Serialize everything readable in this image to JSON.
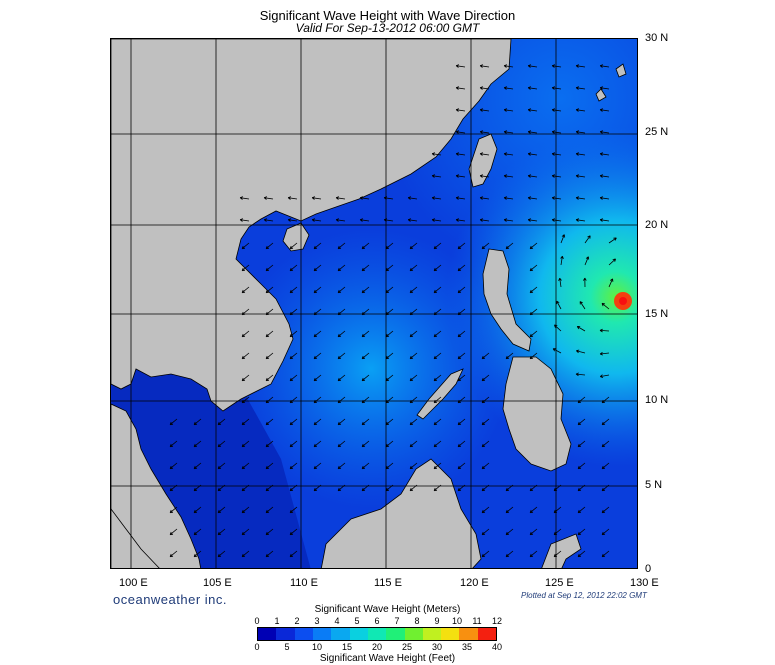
{
  "title": "Significant Wave Height with Wave Direction",
  "subtitle": "Valid For Sep-13-2012 06:00 GMT",
  "lon_labels": [
    "100 E",
    "105 E",
    "110 E",
    "115 E",
    "120 E",
    "125 E",
    "130 E"
  ],
  "lat_labels": [
    "30 N",
    "25 N",
    "20 N",
    "15 N",
    "10 N",
    "5 N",
    "0"
  ],
  "brand": "oceanweather inc.",
  "plotted": "Plotted at Sep 12, 2012 22:02 GMT",
  "colorbar": {
    "title_top": "Significant Wave Height (Meters)",
    "title_bottom": "Significant Wave Height (Feet)",
    "meters": [
      "0",
      "1",
      "2",
      "3",
      "4",
      "5",
      "6",
      "7",
      "8",
      "9",
      "10",
      "11",
      "12"
    ],
    "feet": [
      "0",
      "5",
      "10",
      "15",
      "20",
      "25",
      "30",
      "35",
      "40"
    ],
    "colors": [
      "#0000b4",
      "#0a28d8",
      "#0c4ef0",
      "#0a7cf6",
      "#0aa8f0",
      "#0ad0e0",
      "#10e8b4",
      "#20f078",
      "#70f030",
      "#c0f020",
      "#f4e010",
      "#f89010",
      "#f42010"
    ]
  },
  "colors": {
    "land": "#c0c0c0",
    "ocean_deep": "#0a36d8",
    "ocean_mid": "#0a6ef0",
    "ocean_high": "#10d8d8",
    "peak": "#f44010"
  }
}
